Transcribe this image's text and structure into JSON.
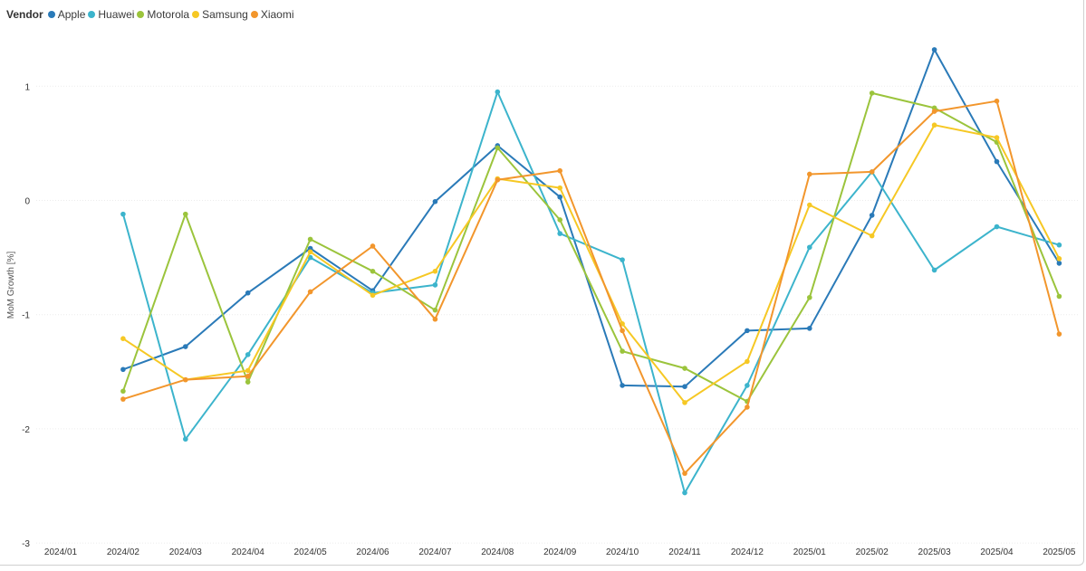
{
  "chart_data": {
    "type": "line",
    "legend_title": "Vendor",
    "legend_position": "top-left",
    "ylabel": "MoM Growth [%]",
    "xlabel": "",
    "grid": true,
    "ylim": [
      -3,
      1.35
    ],
    "yticks": [
      1,
      0,
      -1,
      -2,
      -3
    ],
    "categories": [
      "2024/01",
      "2024/02",
      "2024/03",
      "2024/04",
      "2024/05",
      "2024/06",
      "2024/07",
      "2024/08",
      "2024/09",
      "2024/10",
      "2024/11",
      "2024/12",
      "2025/01",
      "2025/02",
      "2025/03",
      "2025/04",
      "2025/05"
    ],
    "series": [
      {
        "name": "Apple",
        "color": "#2a7ab8",
        "values": [
          null,
          -1.48,
          -1.28,
          -0.81,
          -0.42,
          -0.79,
          -0.01,
          0.48,
          0.03,
          -1.62,
          -1.63,
          -1.14,
          -1.12,
          -0.13,
          1.32,
          0.34,
          -0.55
        ]
      },
      {
        "name": "Huawei",
        "color": "#3cb4cc",
        "values": [
          null,
          -0.12,
          -2.09,
          -1.35,
          -0.5,
          -0.81,
          -0.74,
          0.95,
          -0.29,
          -0.52,
          -2.56,
          -1.62,
          -0.41,
          0.25,
          -0.61,
          -0.23,
          -0.39
        ]
      },
      {
        "name": "Motorola",
        "color": "#9bc43c",
        "values": [
          null,
          -1.67,
          -0.12,
          -1.59,
          -0.34,
          -0.62,
          -0.96,
          0.46,
          -0.17,
          -1.32,
          -1.47,
          -1.76,
          -0.85,
          0.94,
          0.81,
          0.51,
          -0.84
        ]
      },
      {
        "name": "Samsung",
        "color": "#f6c824",
        "values": [
          null,
          -1.21,
          -1.57,
          -1.49,
          -0.45,
          -0.83,
          -0.62,
          0.19,
          0.11,
          -1.08,
          -1.77,
          -1.41,
          -0.04,
          -0.31,
          0.66,
          0.55,
          -0.51
        ]
      },
      {
        "name": "Xiaomi",
        "color": "#f2962c",
        "values": [
          null,
          -1.74,
          -1.57,
          -1.54,
          -0.8,
          -0.4,
          -1.04,
          0.18,
          0.26,
          -1.14,
          -2.39,
          -1.81,
          0.23,
          0.25,
          0.78,
          0.87,
          -1.17
        ]
      }
    ]
  }
}
